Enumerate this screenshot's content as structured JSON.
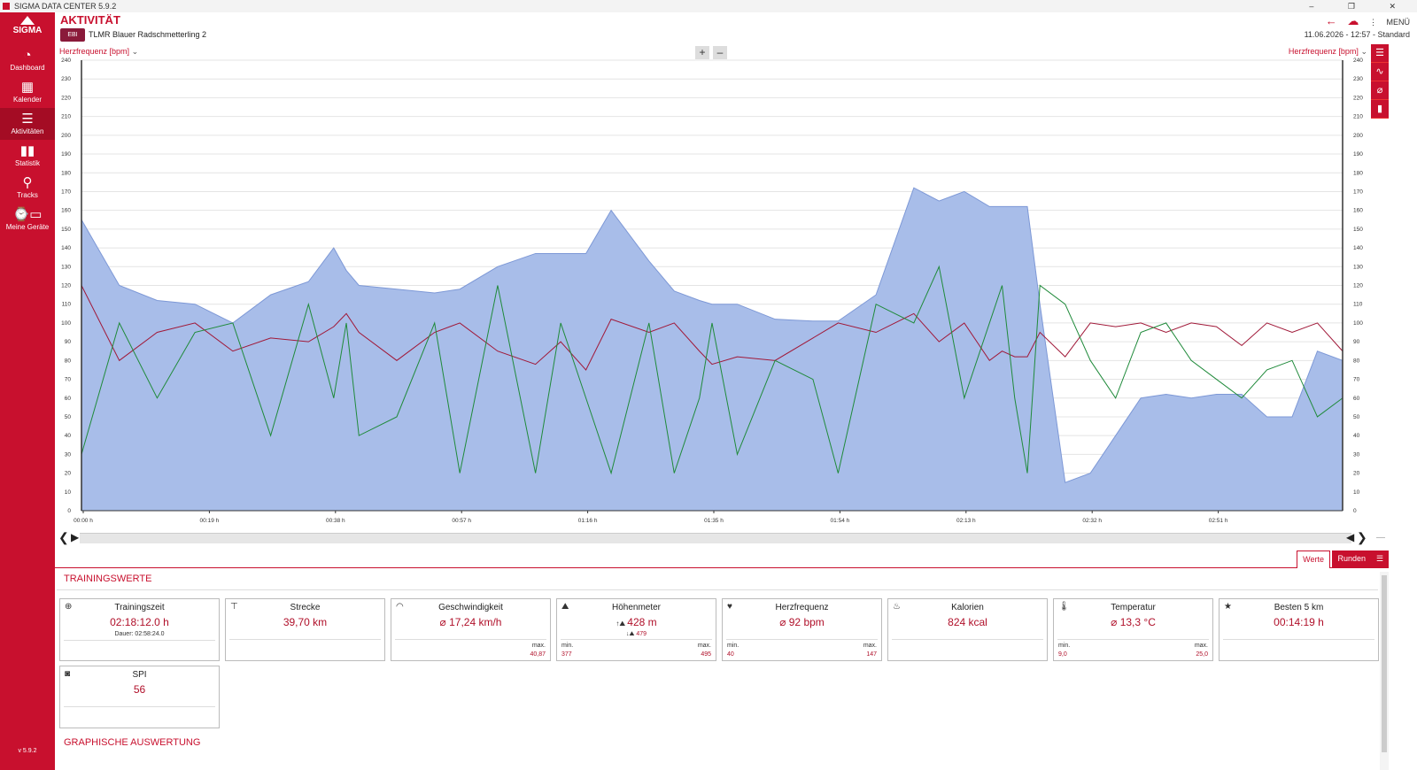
{
  "window": {
    "title": "SIGMA DATA CENTER 5.9.2",
    "controls": "– ❐ ✕"
  },
  "sidebar": {
    "logo": "SIGMA",
    "items": [
      {
        "label": "Dashboard",
        "icon": "speedometer-icon"
      },
      {
        "label": "Kalender",
        "icon": "calendar-icon"
      },
      {
        "label": "Aktivitäten",
        "icon": "list-icon"
      },
      {
        "label": "Statistik",
        "icon": "bar-chart-icon"
      },
      {
        "label": "Tracks",
        "icon": "map-pin-icon"
      },
      {
        "label": "Meine Geräte",
        "icon": "devices-icon"
      }
    ],
    "version": "v 5.9.2"
  },
  "header": {
    "title": "AKTIVITÄT",
    "badge": "EBI",
    "activity_name": "TLMR Blauer Radschmetterling 2",
    "menu_label": "MENÜ",
    "date": "11.06.2026 - 12:57 - Standard"
  },
  "chart": {
    "left_axis_label": "Herzfrequenz [bpm]",
    "right_axis_label": "Herzfrequenz [bpm]",
    "zoom_in": "+",
    "zoom_out": "–"
  },
  "chart_data": {
    "type": "line",
    "title": "",
    "ylabel": "Herzfrequenz [bpm]",
    "ylim": [
      0,
      240
    ],
    "y_ticks": [
      0,
      10,
      20,
      30,
      40,
      50,
      60,
      70,
      80,
      90,
      100,
      110,
      120,
      130,
      140,
      150,
      160,
      170,
      180,
      190,
      200,
      210,
      220,
      230,
      240
    ],
    "x_ticks": [
      "00:00 h",
      "00:19 h",
      "00:38 h",
      "00:57 h",
      "01:16 h",
      "01:35 h",
      "01:54 h",
      "02:13 h",
      "02:32 h",
      "02:51 h"
    ],
    "grid": true,
    "x": [
      0,
      0.03,
      0.06,
      0.09,
      0.12,
      0.15,
      0.18,
      0.2,
      0.21,
      0.22,
      0.25,
      0.28,
      0.3,
      0.33,
      0.36,
      0.38,
      0.4,
      0.42,
      0.45,
      0.47,
      0.49,
      0.5,
      0.52,
      0.55,
      0.58,
      0.6,
      0.63,
      0.66,
      0.68,
      0.7,
      0.72,
      0.73,
      0.74,
      0.75,
      0.76,
      0.78,
      0.8,
      0.82,
      0.84,
      0.86,
      0.88,
      0.9,
      0.92,
      0.94,
      0.96,
      0.98,
      1.0
    ],
    "series": [
      {
        "color": "#a8bde9",
        "values": [
          155,
          120,
          112,
          110,
          100,
          115,
          122,
          140,
          128,
          120,
          118,
          116,
          118,
          130,
          137,
          137,
          137,
          160,
          133,
          117,
          112,
          110,
          110,
          102,
          101,
          101,
          115,
          172,
          165,
          170,
          162,
          162,
          162,
          162,
          110,
          15,
          20,
          40,
          60,
          62,
          60,
          62,
          62,
          50,
          50,
          85,
          80
        ]
      },
      {
        "color": "#a01838",
        "values": [
          120,
          80,
          95,
          100,
          85,
          92,
          90,
          98,
          105,
          95,
          80,
          95,
          100,
          85,
          78,
          90,
          75,
          102,
          95,
          100,
          85,
          78,
          82,
          80,
          92,
          100,
          95,
          105,
          90,
          100,
          80,
          85,
          82,
          82,
          95,
          82,
          100,
          98,
          100,
          95,
          100,
          98,
          88,
          100,
          95,
          100,
          85
        ]
      },
      {
        "color": "#1f8a3a",
        "values": [
          30,
          100,
          60,
          95,
          100,
          40,
          110,
          60,
          100,
          40,
          50,
          100,
          20,
          120,
          20,
          100,
          60,
          20,
          100,
          20,
          60,
          100,
          30,
          80,
          70,
          20,
          110,
          100,
          130,
          60,
          100,
          120,
          60,
          20,
          120,
          110,
          80,
          60,
          95,
          100,
          80,
          70,
          60,
          75,
          80,
          50,
          60
        ]
      }
    ]
  },
  "tabs": {
    "werte": "Werte",
    "runden": "Runden"
  },
  "training": {
    "section_title": "TRAININGSWERTE",
    "min_label": "min.",
    "max_label": "max.",
    "cards": {
      "trainingszeit": {
        "label": "Trainingszeit",
        "value": "02:18:12.0 h",
        "sub": "Dauer: 02:58:24.0",
        "icon": "clock-icon"
      },
      "strecke": {
        "label": "Strecke",
        "value": "39,70 km",
        "icon": "signpost-icon"
      },
      "geschwindigkeit": {
        "label": "Geschwindigkeit",
        "value": "⌀ 17,24 km/h",
        "max": "40,87",
        "icon": "speedometer-icon"
      },
      "hoehenmeter": {
        "label": "Höhenmeter",
        "value": "428 m",
        "down": "479",
        "min": "377",
        "max": "495",
        "icon": "mountain-icon"
      },
      "herzfrequenz": {
        "label": "Herzfrequenz",
        "value": "⌀ 92 bpm",
        "min": "40",
        "max": "147",
        "icon": "heart-icon"
      },
      "kalorien": {
        "label": "Kalorien",
        "value": "824 kcal",
        "icon": "flame-icon"
      },
      "temperatur": {
        "label": "Temperatur",
        "value": "⌀ 13,3 °C",
        "min": "9,0",
        "max": "25,0",
        "icon": "thermometer-icon"
      },
      "besten": {
        "label": "Besten 5 km",
        "value": "00:14:19 h",
        "icon": "star-icon"
      },
      "spi": {
        "label": "SPI",
        "value": "56",
        "icon": "spi-icon"
      }
    }
  },
  "graphics": {
    "section_title": "GRAPHISCHE AUSWERTUNG"
  }
}
